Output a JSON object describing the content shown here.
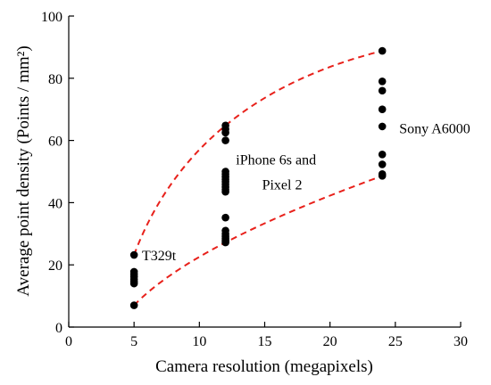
{
  "chart_data": {
    "type": "scatter",
    "xlabel": "Camera resolution (megapixels)",
    "ylabel": "Average point density (Points / mm²)",
    "xlim": [
      0,
      30
    ],
    "ylim": [
      0,
      100
    ],
    "x_ticks": [
      0,
      5,
      10,
      15,
      20,
      25,
      30
    ],
    "y_ticks": [
      0,
      20,
      40,
      60,
      80,
      100
    ],
    "grid": false,
    "point_color": "#000000",
    "envelope_color": "#e8211b",
    "series": [
      {
        "x": [
          5,
          5,
          5,
          5,
          5,
          5,
          5,
          5
        ],
        "y": [
          23.2,
          17.8,
          17.0,
          16.2,
          15.4,
          14.6,
          14.0,
          7.0
        ]
      },
      {
        "x": [
          12,
          12,
          12,
          12,
          12,
          12,
          12,
          12,
          12,
          12,
          12,
          12,
          12,
          12,
          12,
          12,
          12,
          12,
          12,
          12,
          12
        ],
        "y": [
          64.8,
          63.6,
          62.5,
          60.0,
          50.0,
          49.2,
          48.3,
          47.5,
          46.7,
          45.9,
          45.0,
          44.2,
          43.5,
          35.2,
          31.0,
          30.0,
          29.2,
          28.5,
          28.0,
          27.5,
          27.2
        ]
      },
      {
        "x": [
          24,
          24,
          24,
          24,
          24,
          24,
          24,
          24,
          24
        ],
        "y": [
          88.8,
          79.0,
          76.0,
          70.0,
          64.5,
          55.5,
          52.3,
          49.2,
          48.6
        ]
      }
    ],
    "envelopes": [
      {
        "name": "upper",
        "x": [
          5,
          12,
          24
        ],
        "y": [
          23.2,
          64.8,
          88.8
        ]
      },
      {
        "name": "lower",
        "x": [
          5,
          12,
          24
        ],
        "y": [
          7.0,
          27.2,
          48.6
        ]
      }
    ],
    "annotations": [
      {
        "text": "T329t",
        "x": 5.6,
        "y": 23.2
      },
      {
        "text": "iPhone 6s and",
        "x": 12.8,
        "y": 54
      },
      {
        "text": "Pixel 2",
        "x": 14.8,
        "y": 46
      },
      {
        "text": "Sony A6000",
        "x": 25.3,
        "y": 64
      }
    ]
  }
}
